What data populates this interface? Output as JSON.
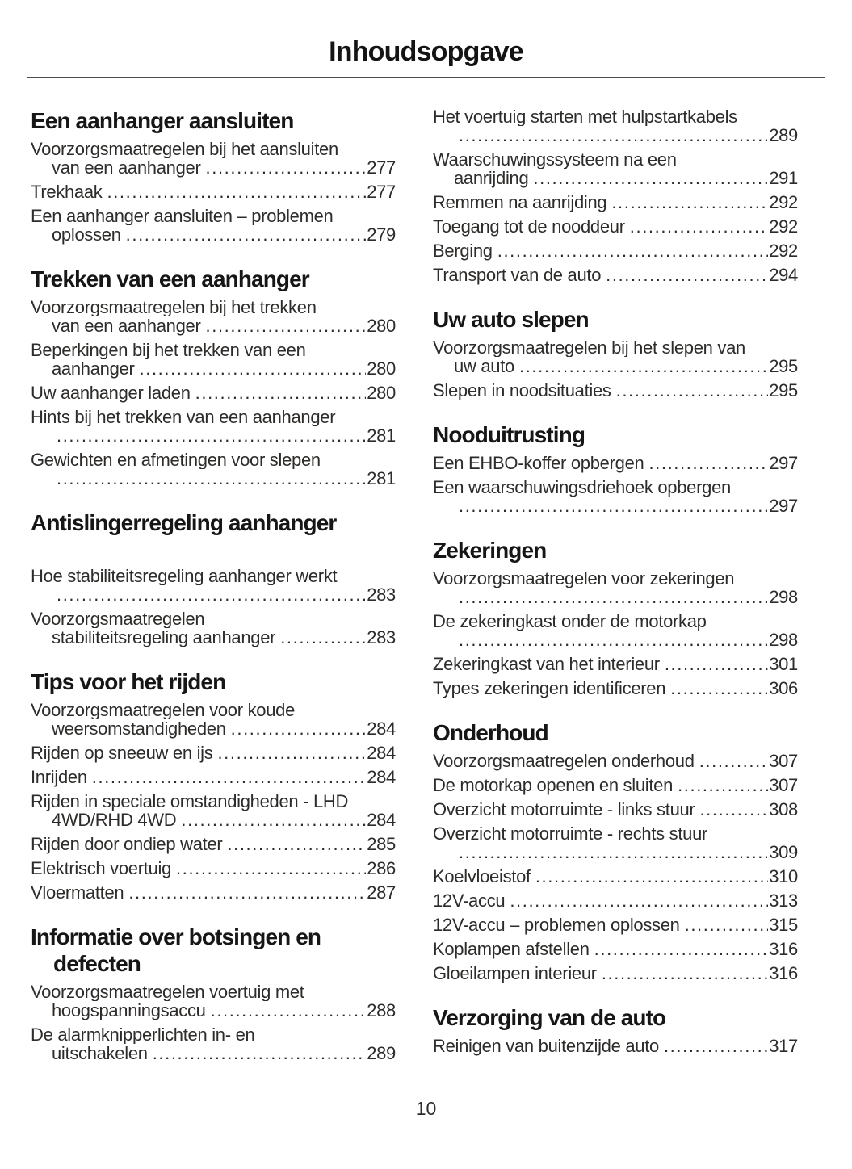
{
  "page": {
    "title": "Inhoudsopgave",
    "page_number": "10"
  },
  "columns": [
    {
      "sections": [
        {
          "heading_lines": [
            "Een aanhanger aansluiten"
          ],
          "entries": [
            {
              "pre": [
                "Voorzorgsmaatregelen bij het aansluiten"
              ],
              "last": "van een aanhanger",
              "page": "277"
            },
            {
              "pre": [],
              "last": "Trekhaak",
              "page": "277"
            },
            {
              "pre": [
                "Een aanhanger aansluiten – problemen"
              ],
              "last": "oplossen",
              "page": "279"
            }
          ]
        },
        {
          "heading_lines": [
            "Trekken van een aanhanger"
          ],
          "entries": [
            {
              "pre": [
                "Voorzorgsmaatregelen bij het trekken"
              ],
              "last": "van een aanhanger",
              "page": "280"
            },
            {
              "pre": [
                "Beperkingen bij het trekken van een"
              ],
              "last": "aanhanger",
              "page": "280"
            },
            {
              "pre": [],
              "last": "Uw aanhanger laden",
              "page": "280"
            },
            {
              "pre": [
                "Hints bij het trekken van een aanhanger"
              ],
              "last": "",
              "page": "281"
            },
            {
              "pre": [
                "Gewichten en afmetingen voor slepen"
              ],
              "last": "",
              "page": "281"
            }
          ]
        },
        {
          "heading_lines": [
            "Antislingerregeling aanhanger"
          ],
          "gap_after_heading": true,
          "entries": [
            {
              "pre": [
                "Hoe stabiliteitsregeling aanhanger werkt"
              ],
              "last": "",
              "page": "283"
            },
            {
              "pre": [
                "Voorzorgsmaatregelen"
              ],
              "last": "stabiliteitsregeling aanhanger",
              "page": "283"
            }
          ]
        },
        {
          "heading_lines": [
            "Tips voor het rijden"
          ],
          "entries": [
            {
              "pre": [
                "Voorzorgsmaatregelen voor koude"
              ],
              "last": "weersomstandigheden",
              "page": "284"
            },
            {
              "pre": [],
              "last": "Rijden op sneeuw en ijs",
              "page": "284"
            },
            {
              "pre": [],
              "last": "Inrijden",
              "page": "284"
            },
            {
              "pre": [
                "Rijden in speciale omstandigheden - LHD"
              ],
              "last": "4WD/RHD 4WD",
              "page": "284"
            },
            {
              "pre": [],
              "last": "Rijden door ondiep water",
              "page": "285"
            },
            {
              "pre": [],
              "last": "Elektrisch voertuig",
              "page": "286"
            },
            {
              "pre": [],
              "last": "Vloermatten",
              "page": "287"
            }
          ]
        },
        {
          "heading_lines": [
            "Informatie over botsingen en",
            "defecten"
          ],
          "entries": [
            {
              "pre": [
                "Voorzorgsmaatregelen voertuig met"
              ],
              "last": "hoogspanningsaccu",
              "page": "288"
            },
            {
              "pre": [
                "De alarmknipperlichten in- en"
              ],
              "last": "uitschakelen",
              "page": "289"
            }
          ]
        }
      ]
    },
    {
      "sections": [
        {
          "heading_lines": [],
          "entries": [
            {
              "pre": [
                "Het voertuig starten met hulpstartkabels"
              ],
              "last": "",
              "page": "289"
            },
            {
              "pre": [
                "Waarschuwingssysteem na een"
              ],
              "last": "aanrijding",
              "page": "291"
            },
            {
              "pre": [],
              "last": "Remmen na aanrijding",
              "page": "292"
            },
            {
              "pre": [],
              "last": "Toegang tot de nooddeur",
              "page": "292"
            },
            {
              "pre": [],
              "last": "Berging",
              "page": "292"
            },
            {
              "pre": [],
              "last": "Transport van de auto",
              "page": "294"
            }
          ]
        },
        {
          "heading_lines": [
            "Uw auto slepen"
          ],
          "entries": [
            {
              "pre": [
                "Voorzorgsmaatregelen bij het slepen van"
              ],
              "last": "uw auto",
              "page": "295"
            },
            {
              "pre": [],
              "last": "Slepen in noodsituaties",
              "page": "295"
            }
          ]
        },
        {
          "heading_lines": [
            "Nooduitrusting"
          ],
          "entries": [
            {
              "pre": [],
              "last": "Een EHBO-koffer opbergen",
              "page": "297"
            },
            {
              "pre": [
                "Een waarschuwingsdriehoek opbergen"
              ],
              "last": "",
              "page": "297"
            }
          ]
        },
        {
          "heading_lines": [
            "Zekeringen"
          ],
          "entries": [
            {
              "pre": [
                "Voorzorgsmaatregelen voor zekeringen"
              ],
              "last": "",
              "page": "298"
            },
            {
              "pre": [
                "De zekeringkast onder de motorkap"
              ],
              "last": "",
              "page": "298"
            },
            {
              "pre": [],
              "last": "Zekeringkast van het interieur",
              "page": "301"
            },
            {
              "pre": [],
              "last": "Types zekeringen identificeren",
              "page": "306"
            }
          ]
        },
        {
          "heading_lines": [
            "Onderhoud"
          ],
          "entries": [
            {
              "pre": [],
              "last": "Voorzorgsmaatregelen onderhoud",
              "page": "307"
            },
            {
              "pre": [],
              "last": "De motorkap openen en sluiten",
              "page": "307"
            },
            {
              "pre": [],
              "last": "Overzicht motorruimte - links stuur",
              "page": "308"
            },
            {
              "pre": [
                "Overzicht motorruimte - rechts stuur"
              ],
              "last": "",
              "page": "309"
            },
            {
              "pre": [],
              "last": "Koelvloeistof",
              "page": "310"
            },
            {
              "pre": [],
              "last": "12V-accu",
              "page": "313"
            },
            {
              "pre": [],
              "last": "12V-accu – problemen oplossen",
              "page": "315"
            },
            {
              "pre": [],
              "last": "Koplampen afstellen",
              "page": "316"
            },
            {
              "pre": [],
              "last": "Gloeilampen interieur",
              "page": "316"
            }
          ]
        },
        {
          "heading_lines": [
            "Verzorging van de auto"
          ],
          "entries": [
            {
              "pre": [],
              "last": "Reinigen van buitenzijde auto",
              "page": "317"
            }
          ]
        }
      ]
    }
  ]
}
